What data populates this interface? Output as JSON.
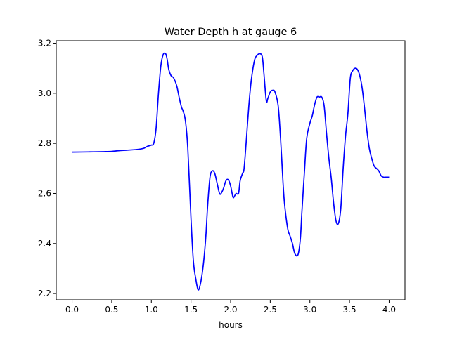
{
  "chart_data": {
    "type": "line",
    "title": "Water Depth h at gauge 6",
    "xlabel": "hours",
    "ylabel": "",
    "xlim": [
      -0.2,
      4.2
    ],
    "ylim": [
      2.175,
      3.21
    ],
    "grid": false,
    "x_ticks": [
      {
        "value": 0.0,
        "label": "0.0"
      },
      {
        "value": 0.5,
        "label": "0.5"
      },
      {
        "value": 1.0,
        "label": "1.0"
      },
      {
        "value": 1.5,
        "label": "1.5"
      },
      {
        "value": 2.0,
        "label": "2.0"
      },
      {
        "value": 2.5,
        "label": "2.5"
      },
      {
        "value": 3.0,
        "label": "3.0"
      },
      {
        "value": 3.5,
        "label": "3.5"
      },
      {
        "value": 4.0,
        "label": "4.0"
      }
    ],
    "y_ticks": [
      {
        "value": 2.2,
        "label": "2.2"
      },
      {
        "value": 2.4,
        "label": "2.4"
      },
      {
        "value": 2.6,
        "label": "2.6"
      },
      {
        "value": 2.8,
        "label": "2.8"
      },
      {
        "value": 3.0,
        "label": "3.0"
      },
      {
        "value": 3.2,
        "label": "3.2"
      }
    ],
    "series": [
      {
        "name": "gauge 6",
        "color": "#0000ff",
        "x": [
          0.0,
          0.2,
          0.4,
          0.5,
          0.6,
          0.8,
          0.9,
          0.95,
          1.0,
          1.03,
          1.06,
          1.09,
          1.12,
          1.15,
          1.18,
          1.2,
          1.22,
          1.25,
          1.28,
          1.32,
          1.35,
          1.38,
          1.4,
          1.43,
          1.46,
          1.5,
          1.53,
          1.56,
          1.59,
          1.62,
          1.65,
          1.67,
          1.69,
          1.71,
          1.74,
          1.77,
          1.8,
          1.83,
          1.86,
          1.88,
          1.91,
          1.94,
          1.97,
          2.0,
          2.03,
          2.05,
          2.07,
          2.1,
          2.12,
          2.15,
          2.17,
          2.2,
          2.23,
          2.26,
          2.3,
          2.33,
          2.37,
          2.4,
          2.42,
          2.45,
          2.47,
          2.5,
          2.53,
          2.56,
          2.6,
          2.63,
          2.66,
          2.68,
          2.72,
          2.75,
          2.78,
          2.81,
          2.85,
          2.88,
          2.9,
          2.93,
          2.96,
          3.0,
          3.03,
          3.06,
          3.09,
          3.12,
          3.15,
          3.18,
          3.21,
          3.24,
          3.27,
          3.3,
          3.33,
          3.36,
          3.39,
          3.42,
          3.45,
          3.48,
          3.51,
          3.54,
          3.57,
          3.6,
          3.63,
          3.66,
          3.69,
          3.72,
          3.75,
          3.78,
          3.81,
          3.84,
          3.87,
          3.9,
          3.93,
          3.96,
          4.0
        ],
        "y": [
          2.765,
          2.766,
          2.767,
          2.768,
          2.771,
          2.775,
          2.78,
          2.788,
          2.793,
          2.8,
          2.86,
          3.0,
          3.11,
          3.155,
          3.158,
          3.135,
          3.095,
          3.07,
          3.062,
          3.03,
          2.985,
          2.945,
          2.93,
          2.89,
          2.78,
          2.5,
          2.33,
          2.26,
          2.215,
          2.24,
          2.3,
          2.36,
          2.44,
          2.55,
          2.665,
          2.69,
          2.68,
          2.64,
          2.6,
          2.6,
          2.62,
          2.65,
          2.655,
          2.63,
          2.585,
          2.59,
          2.6,
          2.6,
          2.65,
          2.68,
          2.7,
          2.82,
          2.95,
          3.05,
          3.13,
          3.15,
          3.158,
          3.145,
          3.08,
          2.97,
          2.98,
          3.005,
          3.012,
          3.005,
          2.95,
          2.82,
          2.65,
          2.56,
          2.46,
          2.43,
          2.4,
          2.36,
          2.355,
          2.42,
          2.53,
          2.68,
          2.82,
          2.88,
          2.91,
          2.955,
          2.985,
          2.985,
          2.985,
          2.95,
          2.84,
          2.74,
          2.66,
          2.56,
          2.49,
          2.48,
          2.54,
          2.7,
          2.83,
          2.92,
          3.06,
          3.09,
          3.1,
          3.095,
          3.07,
          3.02,
          2.94,
          2.85,
          2.78,
          2.74,
          2.71,
          2.7,
          2.69,
          2.67,
          2.665,
          2.665,
          2.665
        ]
      }
    ]
  }
}
